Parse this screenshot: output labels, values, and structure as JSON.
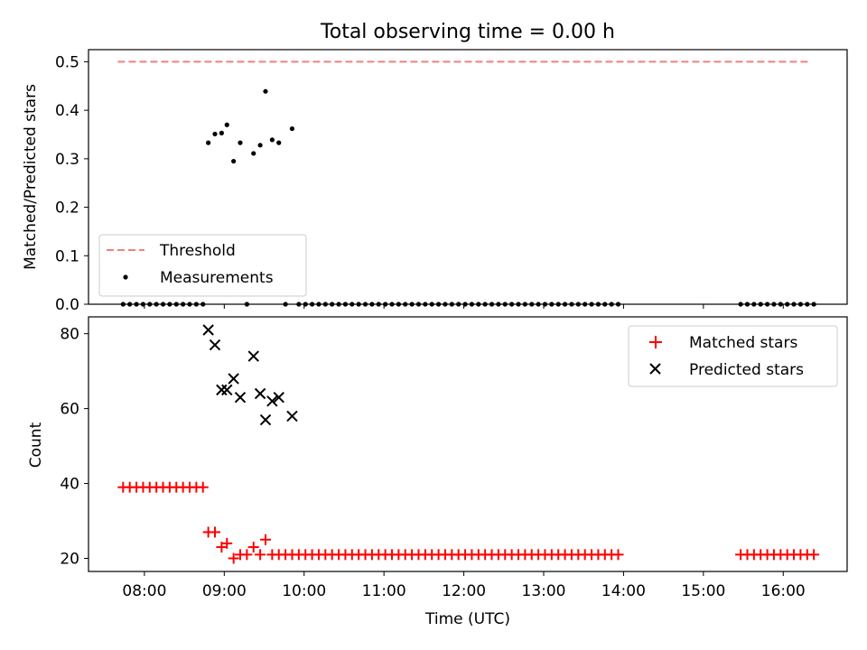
{
  "title": "Total observing time = 0.00 h",
  "colors": {
    "threshold": "#f08080",
    "matched": "#ff0000",
    "predicted": "#000000",
    "measurements": "#000000"
  },
  "chart_data": [
    {
      "type": "scatter",
      "panel": "top",
      "title": "Total observing time = 0.00 h",
      "xlabel": "",
      "ylabel": "Matched/Predicted stars",
      "ylim": [
        0,
        0.525
      ],
      "xlim": [
        "07:18",
        "16:48"
      ],
      "yticks": [
        "0.0",
        "0.1",
        "0.2",
        "0.3",
        "0.4",
        "0.5"
      ],
      "legend_position": "lower-left",
      "threshold": {
        "name": "Threshold",
        "value": 0.5,
        "x_range": [
          "07:40",
          "16:20"
        ],
        "style": "dashed"
      },
      "series": [
        {
          "name": "Measurements",
          "marker": "dot",
          "x": [
            "07:44",
            "07:49",
            "07:54",
            "07:59",
            "08:04",
            "08:09",
            "08:14",
            "08:19",
            "08:24",
            "08:29",
            "08:34",
            "08:39",
            "08:44",
            "08:48",
            "08:53",
            "08:58",
            "09:02",
            "09:07",
            "09:12",
            "09:17",
            "09:22",
            "09:27",
            "09:31",
            "09:36",
            "09:41",
            "09:46",
            "09:51",
            "09:56",
            "10:01",
            "10:06",
            "10:11",
            "10:16",
            "10:21",
            "10:26",
            "10:31",
            "10:36",
            "10:41",
            "10:46",
            "10:51",
            "10:56",
            "11:01",
            "11:06",
            "11:11",
            "11:16",
            "11:21",
            "11:26",
            "11:31",
            "11:36",
            "11:41",
            "11:46",
            "11:51",
            "11:56",
            "12:01",
            "12:06",
            "12:11",
            "12:16",
            "12:21",
            "12:26",
            "12:31",
            "12:36",
            "12:41",
            "12:46",
            "12:51",
            "12:56",
            "13:01",
            "13:06",
            "13:11",
            "13:16",
            "13:21",
            "13:26",
            "13:31",
            "13:36",
            "13:41",
            "13:46",
            "13:51",
            "13:56",
            "15:28",
            "15:33",
            "15:38",
            "15:43",
            "15:48",
            "15:53",
            "15:58",
            "16:03",
            "16:08",
            "16:13",
            "16:18",
            "16:23"
          ],
          "y": [
            0,
            0,
            0,
            0,
            0,
            0,
            0,
            0,
            0,
            0,
            0,
            0,
            0,
            0.333,
            0.351,
            0.353,
            0.37,
            0.295,
            0.333,
            0,
            0.311,
            0.328,
            0.439,
            0.339,
            0.333,
            0,
            0.362,
            0,
            0,
            0,
            0,
            0,
            0,
            0,
            0,
            0,
            0,
            0,
            0,
            0,
            0,
            0,
            0,
            0,
            0,
            0,
            0,
            0,
            0,
            0,
            0,
            0,
            0,
            0,
            0,
            0,
            0,
            0,
            0,
            0,
            0,
            0,
            0,
            0,
            0,
            0,
            0,
            0,
            0,
            0,
            0,
            0,
            0,
            0,
            0,
            0,
            0,
            0,
            0,
            0,
            0,
            0,
            0,
            0,
            0,
            0,
            0,
            0
          ]
        }
      ]
    },
    {
      "type": "scatter",
      "panel": "bottom",
      "xlabel": "Time (UTC)",
      "ylabel": "Count",
      "ylim": [
        16.5,
        84.5
      ],
      "xlim": [
        "07:18",
        "16:48"
      ],
      "yticks": [
        "20",
        "40",
        "60",
        "80"
      ],
      "xticks": [
        "08:00",
        "09:00",
        "10:00",
        "11:00",
        "12:00",
        "13:00",
        "14:00",
        "15:00",
        "16:00"
      ],
      "legend_position": "upper-right",
      "series": [
        {
          "name": "Matched stars",
          "marker": "plus",
          "x": [
            "07:44",
            "07:49",
            "07:54",
            "07:59",
            "08:04",
            "08:09",
            "08:14",
            "08:19",
            "08:24",
            "08:29",
            "08:34",
            "08:39",
            "08:44",
            "08:48",
            "08:53",
            "08:58",
            "09:02",
            "09:07",
            "09:12",
            "09:17",
            "09:22",
            "09:27",
            "09:31",
            "09:36",
            "09:41",
            "09:46",
            "09:51",
            "09:56",
            "10:01",
            "10:06",
            "10:11",
            "10:16",
            "10:21",
            "10:26",
            "10:31",
            "10:36",
            "10:41",
            "10:46",
            "10:51",
            "10:56",
            "11:01",
            "11:06",
            "11:11",
            "11:16",
            "11:21",
            "11:26",
            "11:31",
            "11:36",
            "11:41",
            "11:46",
            "11:51",
            "11:56",
            "12:01",
            "12:06",
            "12:11",
            "12:16",
            "12:21",
            "12:26",
            "12:31",
            "12:36",
            "12:41",
            "12:46",
            "12:51",
            "12:56",
            "13:01",
            "13:06",
            "13:11",
            "13:16",
            "13:21",
            "13:26",
            "13:31",
            "13:36",
            "13:41",
            "13:46",
            "13:51",
            "13:56",
            "15:28",
            "15:33",
            "15:38",
            "15:43",
            "15:48",
            "15:53",
            "15:58",
            "16:03",
            "16:08",
            "16:13",
            "16:18",
            "16:23"
          ],
          "y": [
            39,
            39,
            39,
            39,
            39,
            39,
            39,
            39,
            39,
            39,
            39,
            39,
            39,
            27,
            27,
            23,
            24,
            20,
            21,
            21,
            23,
            21,
            25,
            21,
            21,
            21,
            21,
            21,
            21,
            21,
            21,
            21,
            21,
            21,
            21,
            21,
            21,
            21,
            21,
            21,
            21,
            21,
            21,
            21,
            21,
            21,
            21,
            21,
            21,
            21,
            21,
            21,
            21,
            21,
            21,
            21,
            21,
            21,
            21,
            21,
            21,
            21,
            21,
            21,
            21,
            21,
            21,
            21,
            21,
            21,
            21,
            21,
            21,
            21,
            21,
            21,
            21,
            21,
            21,
            21,
            21,
            21,
            21,
            21,
            21,
            21,
            21,
            21
          ]
        },
        {
          "name": "Predicted stars",
          "marker": "x",
          "x": [
            "08:48",
            "08:53",
            "08:58",
            "09:02",
            "09:07",
            "09:12",
            "09:22",
            "09:27",
            "09:31",
            "09:36",
            "09:41",
            "09:51"
          ],
          "y": [
            81,
            77,
            65,
            65,
            68,
            63,
            74,
            64,
            57,
            62,
            63,
            58
          ]
        }
      ]
    }
  ]
}
